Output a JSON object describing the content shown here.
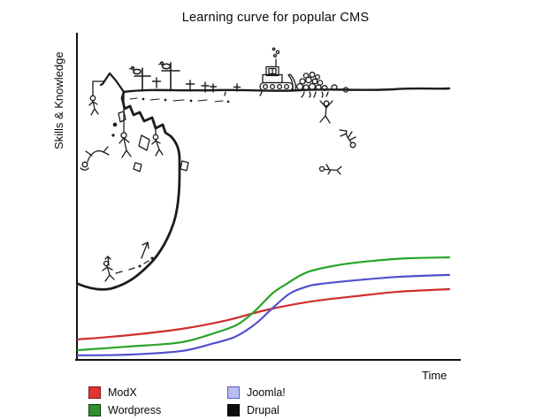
{
  "chart_data": {
    "type": "line",
    "title": "Learning curve for popular CMS",
    "xlabel": "Time",
    "ylabel": "Skills & Knowledge",
    "x_range": [
      0,
      1
    ],
    "y_range": [
      0,
      1
    ],
    "grid": false,
    "axes": "only left and bottom axis lines, no ticks or numeric labels",
    "legend_position": "below chart, bottom-left, two columns",
    "style": "comic: three smooth colored learning curves at bottom; Drupal 'curve' is a hand-drawn near-vertical cliff with casualties",
    "series": [
      {
        "name": "ModX",
        "color": "#cf2d2d",
        "points": [
          [
            0,
            0.063
          ],
          [
            0.136,
            0.076
          ],
          [
            0.277,
            0.095
          ],
          [
            0.394,
            0.12
          ],
          [
            0.512,
            0.155
          ],
          [
            0.629,
            0.18
          ],
          [
            0.746,
            0.196
          ],
          [
            0.864,
            0.21
          ],
          [
            1,
            0.218
          ]
        ]
      },
      {
        "name": "Wordpress",
        "color": "#2aa42a",
        "points": [
          [
            0,
            0.03
          ],
          [
            0.136,
            0.041
          ],
          [
            0.277,
            0.054
          ],
          [
            0.366,
            0.082
          ],
          [
            0.43,
            0.109
          ],
          [
            0.476,
            0.15
          ],
          [
            0.523,
            0.204
          ],
          [
            0.559,
            0.232
          ],
          [
            0.617,
            0.27
          ],
          [
            0.7,
            0.292
          ],
          [
            0.793,
            0.305
          ],
          [
            0.887,
            0.313
          ],
          [
            1,
            0.316
          ]
        ]
      },
      {
        "name": "Joomla!",
        "color": "#5150ce",
        "points": [
          [
            0,
            0.014
          ],
          [
            0.136,
            0.016
          ],
          [
            0.277,
            0.027
          ],
          [
            0.359,
            0.049
          ],
          [
            0.423,
            0.071
          ],
          [
            0.476,
            0.109
          ],
          [
            0.523,
            0.158
          ],
          [
            0.57,
            0.204
          ],
          [
            0.617,
            0.226
          ],
          [
            0.653,
            0.234
          ],
          [
            0.746,
            0.245
          ],
          [
            0.864,
            0.256
          ],
          [
            1,
            0.262
          ]
        ]
      },
      {
        "name": "Drupal",
        "color": "#141414",
        "shape": "overhanging cliff, not a single-valued function",
        "base_points": [
          [
            0,
            0.229
          ],
          [
            0.055,
            0.215
          ],
          [
            0.1,
            0.223
          ],
          [
            0.155,
            0.252
          ],
          [
            0.195,
            0.294
          ],
          [
            0.232,
            0.376
          ],
          [
            0.26,
            0.47
          ],
          [
            0.272,
            0.575
          ],
          [
            0.274,
            0.62
          ]
        ],
        "plateau_level": 0.837,
        "plateau_t_range": [
          0.125,
          1.0
        ],
        "annotations": [
          "gallows with hanged stick figure at top-left of cliff",
          "two tall grave crosses with vultures perched on them",
          "several small grave crosses scattered on the plateau",
          "bulldozer pushing a pile of rocks/skulls toward the cliff edge",
          "stick figures hanging on ropes under the cliff overhang",
          "rocks and boulders falling from the overhang",
          "tumbling and fallen stick figures below the plateau",
          "climber with upward arrows ascending at the cliff base"
        ]
      }
    ]
  },
  "legend": {
    "items": [
      {
        "label": "ModX",
        "fill": "#df3434",
        "border": "#7e1d1d"
      },
      {
        "label": "Wordpress",
        "fill": "#2e8f2e",
        "border": "#123c12"
      },
      {
        "label": "Joomla!",
        "fill": "#b9bcf0",
        "border": "#5b5fbe"
      },
      {
        "label": "Drupal",
        "fill": "#0d0d0d",
        "border": "#000000"
      }
    ]
  },
  "axis_color": "#111111"
}
